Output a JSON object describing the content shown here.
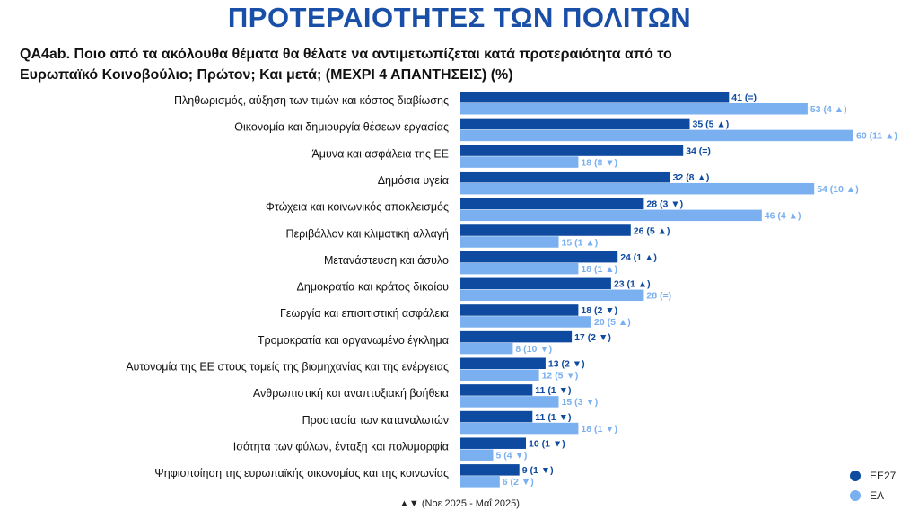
{
  "title": "ΠΡΟΤΕΡΑΙΟΤΗΤΕΣ ΤΩΝ ΠΟΛΙΤΩΝ",
  "question_line1": "QA4ab. Ποιο από τα ακόλουθα θέματα θα θέλατε να αντιμετωπίζεται κατά προτεραιότητα από το",
  "question_line2": "Ευρωπαϊκό Κοινοβούλιο; Πρώτον; Και μετά; (ΜΕΧΡΙ 4 ΑΠΑΝΤΗΣΕΙΣ) (%)",
  "footer": "▲▼ (Νοε 2025 - Μαΐ 2025)",
  "colors": {
    "EE27": "#0d4aa0",
    "EL": "#7aaff0",
    "title": "#1a4fa8"
  },
  "chart_data": {
    "type": "bar",
    "orientation": "horizontal",
    "categories": [
      "Πληθωρισμός, αύξηση των τιμών και κόστος διαβίωσης",
      "Οικονομία και δημιουργία θέσεων εργασίας",
      "Άμυνα και ασφάλεια της ΕΕ",
      "Δημόσια υγεία",
      "Φτώχεια και κοινωνικός αποκλεισμός",
      "Περιβάλλον και κλιματική αλλαγή",
      "Μετανάστευση και άσυλο",
      "Δημοκρατία και κράτος δικαίου",
      "Γεωργία και επισιτιστική ασφάλεια",
      "Τρομοκρατία και οργανωμένο έγκλημα",
      "Αυτονομία της ΕΕ στους τομείς της βιομηχανίας και της ενέργειας",
      "Ανθρωπιστική και αναπτυξιακή βοήθεια",
      "Προστασία των καταναλωτών",
      "Ισότητα των φύλων, ένταξη και πολυμορφία",
      "Ψηφιοποίηση της ευρωπαϊκής οικονομίας και της κοινωνίας"
    ],
    "series": [
      {
        "name": "ΕΕ27",
        "values": [
          41,
          35,
          34,
          32,
          28,
          26,
          24,
          23,
          18,
          17,
          13,
          11,
          11,
          10,
          9
        ],
        "changes": [
          "(=)",
          "(5 ▲)",
          "(=)",
          "(8 ▲)",
          "(3 ▼)",
          "(5 ▲)",
          "(1 ▲)",
          "(1 ▲)",
          "(2 ▼)",
          "(2 ▼)",
          "(2 ▼)",
          "(1 ▼)",
          "(1 ▼)",
          "(1 ▼)",
          "(1 ▼)"
        ]
      },
      {
        "name": "ΕΛ",
        "values": [
          53,
          60,
          18,
          54,
          46,
          15,
          18,
          28,
          20,
          8,
          12,
          15,
          18,
          5,
          6
        ],
        "changes": [
          "(4 ▲)",
          "(11 ▲)",
          "(8 ▼)",
          "(10 ▲)",
          "(4 ▲)",
          "(1 ▲)",
          "(1 ▲)",
          "(=)",
          "(5 ▲)",
          "(10 ▼)",
          "(5 ▼)",
          "(3 ▼)",
          "(1 ▼)",
          "(4 ▼)",
          "(2 ▼)"
        ]
      }
    ],
    "legend_position": "bottom-right",
    "grid": false
  }
}
